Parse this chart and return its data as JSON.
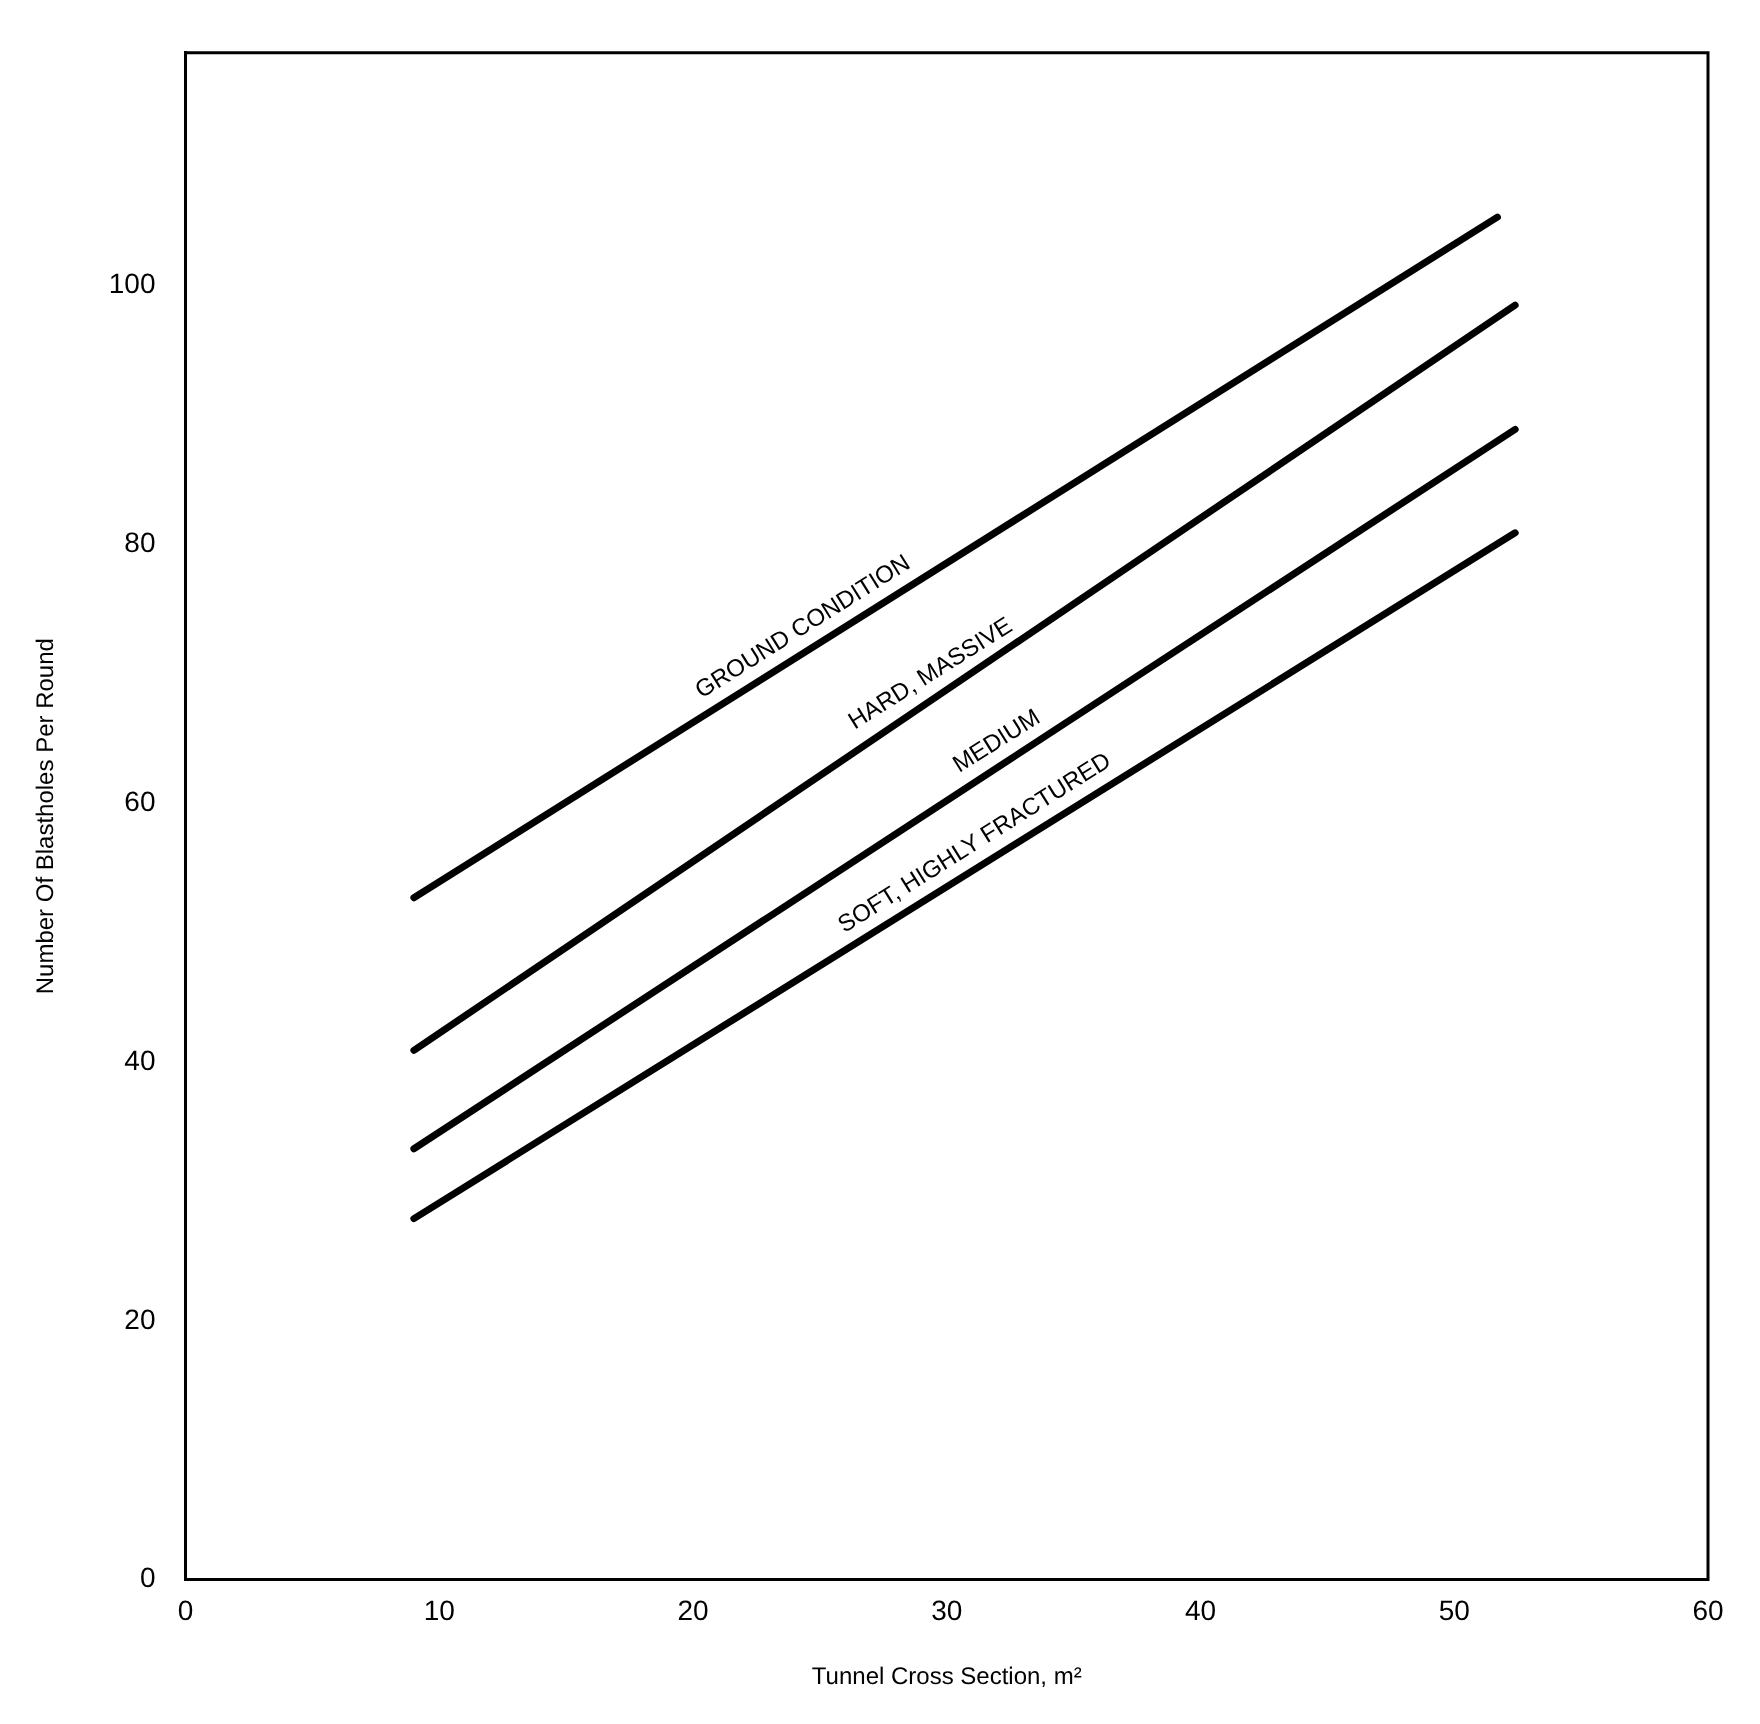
{
  "chart_data": {
    "type": "line",
    "xlabel": "Tunnel Cross Section, m²",
    "ylabel": "Number Of Blastholes Per Round",
    "xlim": [
      0,
      60
    ],
    "xticks": [
      0,
      10,
      20,
      30,
      40,
      50,
      60
    ],
    "ylim": [
      0,
      118
    ],
    "yticks": [
      0,
      20,
      40,
      60,
      80,
      100
    ],
    "grid": false,
    "legend": false,
    "marker": "none",
    "line_style": "solid",
    "series": [
      {
        "color": "#000000",
        "x": [
          9,
          51.7
        ],
        "values": [
          52.7,
          105.3
        ]
      },
      {
        "color": "#000000",
        "x": [
          9,
          52.4
        ],
        "values": [
          40.9,
          98.5
        ]
      },
      {
        "color": "#000000",
        "x": [
          9,
          52.4
        ],
        "values": [
          33.3,
          88.9
        ]
      },
      {
        "color": "#000000",
        "x": [
          9,
          52.4
        ],
        "values": [
          27.9,
          80.9
        ]
      }
    ],
    "annotations": [
      "GROUND CONDITION",
      "HARD, MASSIVE",
      "MEDIUM",
      "SOFT, HIGHLY FRACTURED"
    ]
  }
}
